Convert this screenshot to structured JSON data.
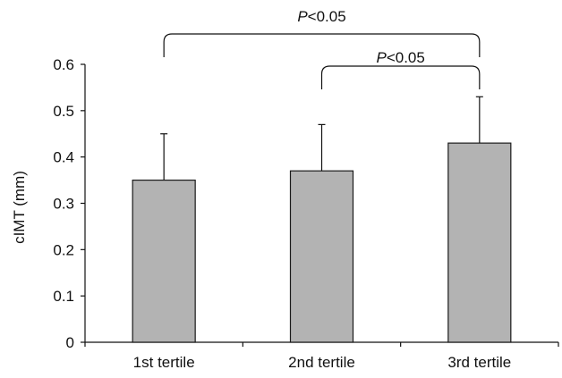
{
  "chart_data": {
    "type": "bar",
    "title": "",
    "xlabel": "",
    "ylabel": "cIMT (mm)",
    "categories": [
      "1st tertile",
      "2nd tertile",
      "3rd tertile"
    ],
    "values": [
      0.35,
      0.37,
      0.43
    ],
    "error_upper": [
      0.45,
      0.47,
      0.53
    ],
    "ylim": [
      0,
      0.6
    ],
    "yticks": [
      "0",
      "0.1",
      "0.2",
      "0.3",
      "0.4",
      "0.5",
      "0.6"
    ],
    "grid": false,
    "legend": "none",
    "significance": [
      {
        "from_category": "1st tertile",
        "to_category": "3rd tertile",
        "label_italic": "P",
        "label_rest": "<0.05"
      },
      {
        "from_category": "2nd tertile",
        "to_category": "3rd tertile",
        "label_italic": "P",
        "label_rest": "<0.05"
      }
    ],
    "colors": {
      "bar_fill": "#b3b3b3",
      "bar_stroke": "#1a1a1a",
      "axis": "#111111",
      "text": "#111111"
    }
  }
}
